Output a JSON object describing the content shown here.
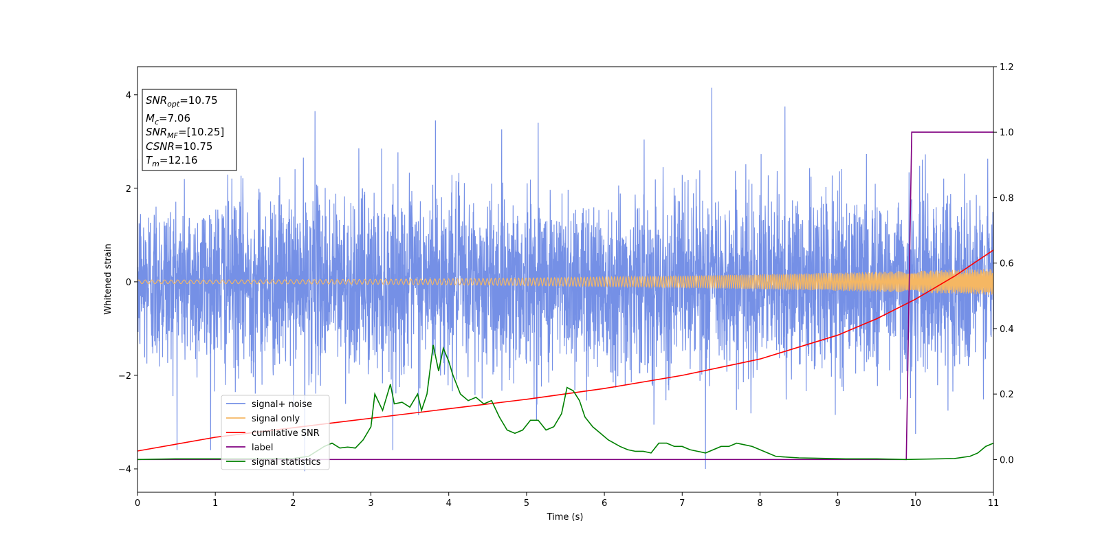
{
  "chart_data": {
    "type": "line",
    "xlabel": "Time (s)",
    "ylabel": "Whitened strain",
    "xlim": [
      0,
      11
    ],
    "ylim": [
      -4.5,
      4.6
    ],
    "y2lim": [
      -0.1,
      1.2
    ],
    "x_ticks": [
      "0",
      "1",
      "2",
      "3",
      "4",
      "5",
      "6",
      "7",
      "8",
      "9",
      "10",
      "11"
    ],
    "y_ticks": [
      "−4",
      "−2",
      "0",
      "2",
      "4"
    ],
    "y_tick_values": [
      -4,
      -2,
      0,
      2,
      4
    ],
    "y2_ticks": [
      "0.0",
      "0.2",
      "0.4",
      "0.6",
      "0.8",
      "1.0",
      "1.2"
    ],
    "y2_tick_values": [
      0.0,
      0.2,
      0.4,
      0.6,
      0.8,
      1.0,
      1.2
    ],
    "legend_position": "lower-left",
    "info_box": {
      "snr_opt": {
        "sym": "SNR",
        "sub": "opt",
        "val": "=10.75"
      },
      "mc": {
        "sym": "M",
        "sub": "c",
        "val": "=7.06"
      },
      "snr_mf": {
        "sym": "SNR",
        "sub": "MF",
        "val": "=[10.25]"
      },
      "csnr": {
        "sym": "CSNR",
        "sub": "",
        "val": "=10.75"
      },
      "tm": {
        "sym": "T",
        "sub": "m",
        "val": "=12.16"
      }
    },
    "series": [
      {
        "name": "signal+ noise",
        "axis": "left",
        "color": "#7590e6",
        "kind": "noise",
        "std": 0.95,
        "x_range": [
          0,
          11
        ],
        "note_peaks": [
          {
            "x": 7.38,
            "y": 4.15
          },
          {
            "x": 2.28,
            "y": 3.65
          },
          {
            "x": 7.3,
            "y": -4.0
          },
          {
            "x": 2.15,
            "y": -4.05
          },
          {
            "x": 3.83,
            "y": 3.45
          },
          {
            "x": 5.15,
            "y": 3.4
          },
          {
            "x": 8.32,
            "y": 3.75
          },
          {
            "x": 10.0,
            "y": -3.25
          }
        ]
      },
      {
        "name": "signal only",
        "axis": "left",
        "color": "#f5b763",
        "kind": "chirp",
        "amplitude_start": 0.04,
        "amplitude_end": 0.28,
        "x_range": [
          0,
          11
        ]
      },
      {
        "name": "cumilative SNR",
        "axis": "right",
        "color": "#ff0000",
        "x": [
          0,
          1,
          2,
          3,
          4,
          5,
          6,
          7,
          8,
          9,
          9.5,
          10,
          10.5,
          11
        ],
        "y": [
          0.026,
          0.068,
          0.097,
          0.126,
          0.155,
          0.184,
          0.217,
          0.257,
          0.307,
          0.38,
          0.43,
          0.49,
          0.56,
          0.64
        ]
      },
      {
        "name": "label",
        "axis": "right",
        "color": "#800080",
        "x": [
          0,
          9.88,
          9.95,
          11
        ],
        "y": [
          0.0,
          0.0,
          1.0,
          1.0
        ]
      },
      {
        "name": "signal statistics",
        "axis": "right",
        "color": "#008000",
        "x": [
          0,
          0.5,
          1,
          1.5,
          2,
          2.2,
          2.4,
          2.5,
          2.6,
          2.7,
          2.8,
          2.9,
          3.0,
          3.05,
          3.15,
          3.25,
          3.3,
          3.4,
          3.5,
          3.6,
          3.65,
          3.72,
          3.8,
          3.87,
          3.93,
          4.0,
          4.05,
          4.15,
          4.25,
          4.35,
          4.45,
          4.55,
          4.65,
          4.75,
          4.85,
          4.95,
          5.05,
          5.15,
          5.25,
          5.35,
          5.45,
          5.52,
          5.6,
          5.68,
          5.75,
          5.85,
          5.95,
          6.05,
          6.2,
          6.3,
          6.4,
          6.5,
          6.6,
          6.7,
          6.8,
          6.9,
          7.0,
          7.1,
          7.2,
          7.3,
          7.4,
          7.5,
          7.6,
          7.7,
          7.8,
          7.9,
          8.0,
          8.1,
          8.2,
          8.3,
          8.5,
          8.7,
          8.9,
          9.1,
          9.3,
          9.5,
          9.7,
          9.88,
          10.5,
          10.7,
          10.8,
          10.9,
          11.0
        ],
        "y": [
          0.0,
          0.002,
          0.002,
          0.002,
          0.003,
          0.01,
          0.04,
          0.05,
          0.035,
          0.038,
          0.035,
          0.06,
          0.1,
          0.2,
          0.15,
          0.23,
          0.17,
          0.175,
          0.16,
          0.2,
          0.15,
          0.2,
          0.35,
          0.27,
          0.34,
          0.3,
          0.26,
          0.2,
          0.18,
          0.19,
          0.17,
          0.18,
          0.13,
          0.09,
          0.08,
          0.09,
          0.12,
          0.12,
          0.09,
          0.1,
          0.14,
          0.22,
          0.21,
          0.18,
          0.13,
          0.1,
          0.08,
          0.06,
          0.04,
          0.03,
          0.025,
          0.025,
          0.02,
          0.05,
          0.05,
          0.04,
          0.04,
          0.03,
          0.025,
          0.02,
          0.03,
          0.04,
          0.04,
          0.05,
          0.045,
          0.04,
          0.03,
          0.02,
          0.01,
          0.008,
          0.005,
          0.004,
          0.003,
          0.002,
          0.002,
          0.002,
          0.001,
          0.0,
          0.003,
          0.01,
          0.02,
          0.04,
          0.05
        ]
      }
    ]
  }
}
